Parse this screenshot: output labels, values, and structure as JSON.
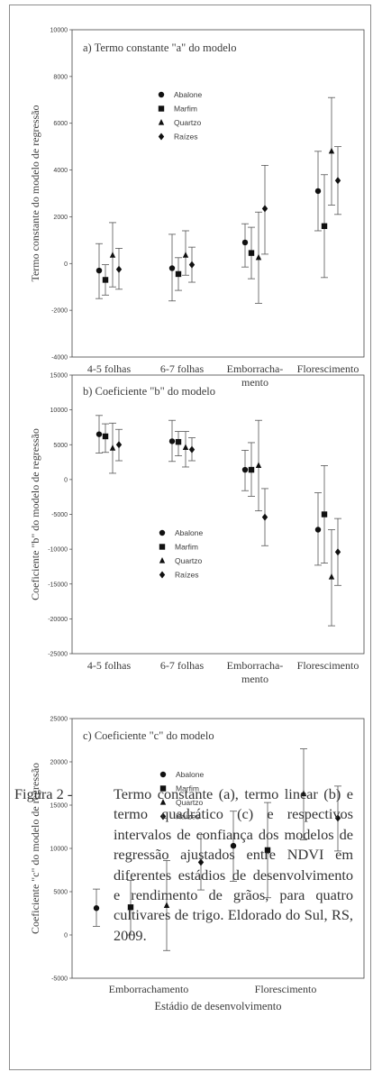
{
  "chart_data": [
    {
      "type": "scatter",
      "title": "a) Termo constante \"a\" do modelo",
      "ylabel": "Termo constante do modelo de regressão",
      "ylim": [
        -4000,
        10000
      ],
      "yticks": [
        -4000,
        -2000,
        0,
        2000,
        4000,
        6000,
        8000,
        10000
      ],
      "categories": [
        "4-5 folhas",
        "6-7 folhas",
        "Emborracha-|mento",
        "Florescimento"
      ],
      "series": [
        {
          "name": "Abalone",
          "marker": "circle",
          "points": [
            [
              0,
              -300,
              -1500,
              850
            ],
            [
              1,
              -200,
              -1600,
              1250
            ],
            [
              2,
              900,
              -150,
              1700
            ],
            [
              3,
              3100,
              1400,
              4800
            ]
          ]
        },
        {
          "name": "Marfim",
          "marker": "square",
          "points": [
            [
              0,
              -700,
              -1350,
              -50
            ],
            [
              1,
              -450,
              -1150,
              250
            ],
            [
              2,
              450,
              -650,
              1550
            ],
            [
              3,
              1600,
              -600,
              3800
            ]
          ]
        },
        {
          "name": "Quartzo",
          "marker": "triangle",
          "points": [
            [
              0,
              350,
              -1000,
              1750
            ],
            [
              1,
              350,
              -500,
              1400
            ],
            [
              2,
              250,
              -1700,
              2200
            ],
            [
              3,
              4800,
              2500,
              7100
            ]
          ]
        },
        {
          "name": "Raízes",
          "marker": "diamond",
          "points": [
            [
              0,
              -250,
              -1100,
              650
            ],
            [
              1,
              -50,
              -800,
              700
            ],
            [
              2,
              2350,
              400,
              4200
            ],
            [
              3,
              3550,
              2100,
              5000
            ]
          ]
        }
      ]
    },
    {
      "type": "scatter",
      "title": "b) Coeficiente \"b\" do modelo",
      "ylabel": "Coeficiente \"b\" do modelo de regressão",
      "ylim": [
        -25000,
        15000
      ],
      "yticks": [
        -25000,
        -20000,
        -15000,
        -10000,
        -5000,
        0,
        5000,
        10000,
        15000
      ],
      "categories": [
        "4-5 folhas",
        "6-7 folhas",
        "Emborracha-|mento",
        "Florescimento"
      ],
      "series": [
        {
          "name": "Abalone",
          "marker": "circle",
          "points": [
            [
              0,
              6500,
              3800,
              9200
            ],
            [
              1,
              5500,
              2600,
              8500
            ],
            [
              2,
              1400,
              -1600,
              4200
            ],
            [
              3,
              -7200,
              -12300,
              -1900
            ]
          ]
        },
        {
          "name": "Marfim",
          "marker": "square",
          "points": [
            [
              0,
              6200,
              3900,
              8000
            ],
            [
              1,
              5400,
              3400,
              6900
            ],
            [
              2,
              1400,
              -2400,
              5300
            ],
            [
              3,
              -5000,
              -12000,
              2000
            ]
          ]
        },
        {
          "name": "Quartzo",
          "marker": "triangle",
          "points": [
            [
              0,
              4500,
              900,
              8100
            ],
            [
              1,
              4600,
              1800,
              6900
            ],
            [
              2,
              2000,
              -4500,
              8500
            ],
            [
              3,
              -14000,
              -21000,
              -7200
            ]
          ]
        },
        {
          "name": "Raízes",
          "marker": "diamond",
          "points": [
            [
              0,
              5000,
              2700,
              7200
            ],
            [
              1,
              4300,
              2700,
              6000
            ],
            [
              2,
              -5400,
              -9500,
              -1300
            ],
            [
              3,
              -10400,
              -15200,
              -5600
            ]
          ]
        }
      ]
    },
    {
      "type": "scatter",
      "title": "c) Coeficiente \"c\" do modelo",
      "ylabel": "Coeficiente \"c\" do modelo de regressão",
      "xlabel": "Estádio de desenvolvimento",
      "ylim": [
        -5000,
        25000
      ],
      "yticks": [
        -5000,
        0,
        5000,
        10000,
        15000,
        20000,
        25000
      ],
      "categories": [
        "Emborrachamento",
        "Florescimento"
      ],
      "series": [
        {
          "name": "Abalone",
          "marker": "circle",
          "points": [
            [
              0,
              3100,
              1000,
              5300
            ],
            [
              1,
              10300,
              6200,
              14300
            ]
          ]
        },
        {
          "name": "Marfim",
          "marker": "square",
          "points": [
            [
              0,
              3200,
              0,
              6300
            ],
            [
              1,
              9800,
              4300,
              15300
            ]
          ]
        },
        {
          "name": "Quartzo",
          "marker": "triangle",
          "points": [
            [
              0,
              3400,
              -1800,
              8600
            ],
            [
              1,
              16300,
              11000,
              21500
            ]
          ]
        },
        {
          "name": "Raízes",
          "marker": "diamond",
          "points": [
            [
              0,
              8400,
              5200,
              11600
            ],
            [
              1,
              13500,
              9700,
              17200
            ]
          ]
        }
      ]
    }
  ],
  "caption": {
    "label": "Figura 2 -",
    "text": "Termo constante (a), termo linear (b) e termo quadrático (c) e respectivos intervalos de confiança dos modelos de regressão ajustados entre NDVI em diferentes estádios de desenvolvimento e rendimento de grãos, para quatro cultivares de trigo. Eldorado do Sul, RS, 2009."
  }
}
